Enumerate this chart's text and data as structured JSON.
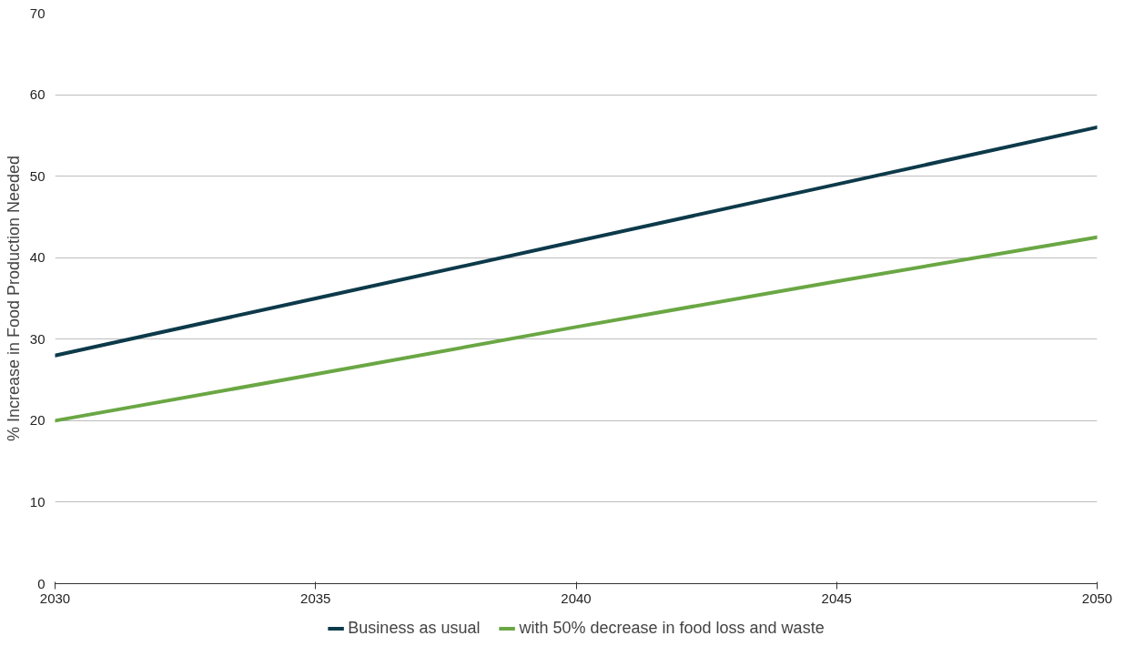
{
  "chart_data": {
    "type": "line",
    "ylabel": "% Increase in Food Production Needed",
    "x": [
      2030,
      2035,
      2040,
      2045,
      2050
    ],
    "series": [
      {
        "name": "Business as usual",
        "color": "#0d3a4a",
        "values": [
          28,
          35,
          42,
          49,
          56
        ]
      },
      {
        "name": "with 50% decrease in food loss and waste",
        "color": "#6aa744",
        "values": [
          20,
          25.7,
          31.5,
          37.1,
          42.5
        ]
      }
    ],
    "xlim": [
      2030,
      2050
    ],
    "xticks": [
      2030,
      2035,
      2040,
      2045,
      2050
    ],
    "ylim": [
      0,
      70
    ],
    "yticks": [
      0,
      10,
      20,
      30,
      40,
      50,
      60,
      70
    ],
    "grid": "y",
    "legend": "bottom",
    "marker": "none",
    "line_style": "solid"
  }
}
